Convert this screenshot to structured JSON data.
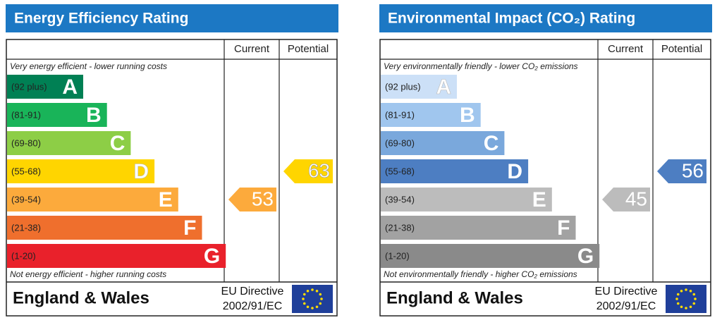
{
  "panels": [
    {
      "title": "Energy Efficiency Rating",
      "columns": [
        "Current",
        "Potential"
      ],
      "top_note": "Very energy efficient - lower running costs",
      "bottom_note": "Not energy efficient - higher running costs",
      "bands": [
        {
          "range": "(92 plus)",
          "letter": "A",
          "color": "#008054"
        },
        {
          "range": "(81-91)",
          "letter": "B",
          "color": "#19b459"
        },
        {
          "range": "(69-80)",
          "letter": "C",
          "color": "#8dce46"
        },
        {
          "range": "(55-68)",
          "letter": "D",
          "color": "#ffd500"
        },
        {
          "range": "(39-54)",
          "letter": "E",
          "color": "#fcaa3c"
        },
        {
          "range": "(21-38)",
          "letter": "F",
          "color": "#ef6f2d"
        },
        {
          "range": "(1-20)",
          "letter": "G",
          "color": "#e9212b"
        }
      ],
      "current": 53,
      "potential": 63,
      "footer": "England & Wales",
      "directive": [
        "EU Directive",
        "2002/91/EC"
      ]
    },
    {
      "title": "Environmental Impact (CO₂) Rating",
      "columns": [
        "Current",
        "Potential"
      ],
      "top_note": "Very environmentally friendly - lower CO₂ emissions",
      "bottom_note": "Not environmentally friendly - higher CO₂ emissions",
      "bands": [
        {
          "range": "(92 plus)",
          "letter": "A",
          "color": "#cce0f7"
        },
        {
          "range": "(81-91)",
          "letter": "B",
          "color": "#a0c6ee"
        },
        {
          "range": "(69-80)",
          "letter": "C",
          "color": "#7aa8dc"
        },
        {
          "range": "(55-68)",
          "letter": "D",
          "color": "#4d7ec2"
        },
        {
          "range": "(39-54)",
          "letter": "E",
          "color": "#bcbcbc"
        },
        {
          "range": "(21-38)",
          "letter": "F",
          "color": "#a2a2a2"
        },
        {
          "range": "(1-20)",
          "letter": "G",
          "color": "#8a8a8a"
        }
      ],
      "current": 45,
      "potential": 56,
      "footer": "England & Wales",
      "directive": [
        "EU Directive",
        "2002/91/EC"
      ]
    }
  ]
}
